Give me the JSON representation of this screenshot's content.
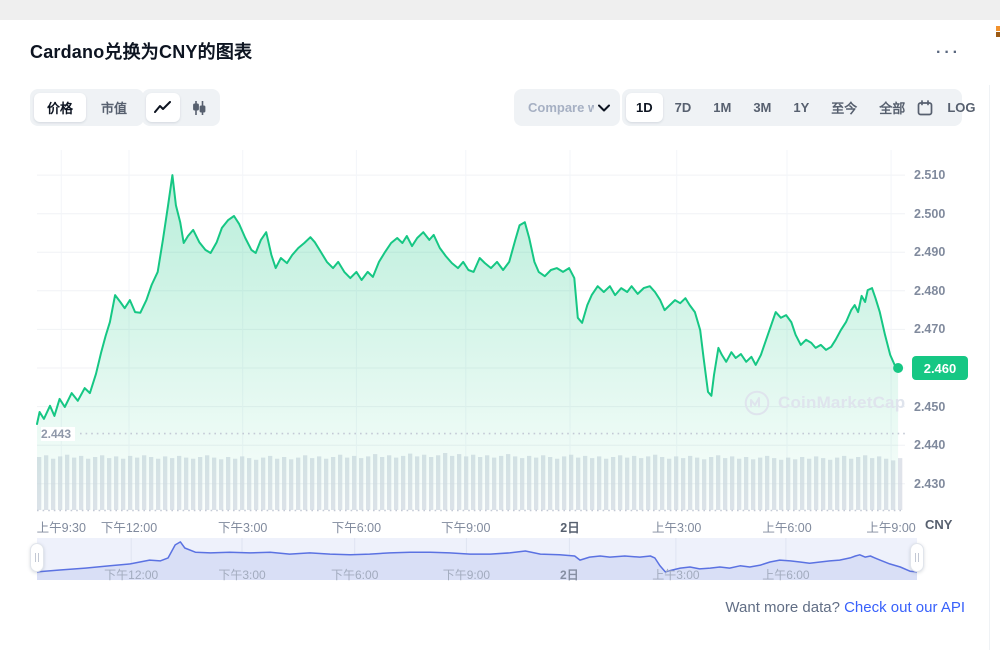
{
  "header": {
    "title": "Cardano兑换为CNY的图表",
    "options_icon": "···"
  },
  "controls": {
    "mode_toggle": {
      "items": [
        {
          "label": "价格",
          "selected": true
        },
        {
          "label": "市值",
          "selected": false
        }
      ]
    },
    "chart_type_toggle": {
      "line_icon": "line-chart",
      "candle_icon": "candlestick",
      "selected": "line"
    },
    "compare": {
      "label": "Compare w"
    },
    "ranges": {
      "items": [
        "1D",
        "7D",
        "1M",
        "3M",
        "1Y",
        "至今",
        "全部"
      ],
      "selected": "1D",
      "calendar_icon": "calendar",
      "log_label": "LOG"
    }
  },
  "watermark": {
    "text": "CoinMarketCap"
  },
  "footer": {
    "prompt": "Want more data?",
    "link": "Check out our API"
  },
  "axis_labels": {
    "currency": "CNY",
    "current_price": "2.460",
    "low_line": "2.443"
  },
  "colors": {
    "line": "#16c784",
    "fill_top": "rgba(22,199,132,0.30)",
    "fill_bottom": "rgba(22,199,132,0.02)",
    "grid_h": "#f0f2f5",
    "grid_v": "#f3f5f9",
    "dotted": "#c3c9d5",
    "volume": "#d2d7e1",
    "nav_bg": "#eef1fb",
    "nav_fill": "#d9dff6",
    "nav_line": "#5b72e2",
    "nav_grid": "#dfe4f2",
    "badge": "#16c784",
    "link": "#3861fb"
  },
  "chart_data": {
    "type": "area",
    "title": "Cardano兑换为CNY的图表",
    "ylabel": "CNY",
    "ylim": [
      2.4232,
      2.5165
    ],
    "y_ticks": [
      2.51,
      2.5,
      2.49,
      2.48,
      2.47,
      2.45,
      2.44,
      2.43
    ],
    "current_price": 2.46,
    "low_value": 2.443,
    "x_ticks": {
      "labels": [
        "上午9:30",
        "下午12:00",
        "下午3:00",
        "下午6:00",
        "下午9:00",
        "2日",
        "上午3:00",
        "上午6:00",
        "上午9:00"
      ],
      "fracs": [
        0.028,
        0.106,
        0.237,
        0.368,
        0.494,
        0.614,
        0.737,
        0.864,
        0.984
      ],
      "bold_index": 5
    },
    "price_series": [
      [
        0.0,
        2.4455
      ],
      [
        0.003,
        2.4486
      ],
      [
        0.008,
        2.4468
      ],
      [
        0.015,
        2.4502
      ],
      [
        0.02,
        2.4476
      ],
      [
        0.026,
        2.452
      ],
      [
        0.032,
        2.4499
      ],
      [
        0.04,
        2.4535
      ],
      [
        0.047,
        2.4515
      ],
      [
        0.055,
        2.4548
      ],
      [
        0.061,
        2.4535
      ],
      [
        0.068,
        2.4585
      ],
      [
        0.074,
        2.4641
      ],
      [
        0.079,
        2.4683
      ],
      [
        0.084,
        2.4719
      ],
      [
        0.09,
        2.4789
      ],
      [
        0.096,
        2.4771
      ],
      [
        0.101,
        2.4755
      ],
      [
        0.107,
        2.4776
      ],
      [
        0.113,
        2.4745
      ],
      [
        0.119,
        2.4743
      ],
      [
        0.126,
        2.4776
      ],
      [
        0.132,
        2.4815
      ],
      [
        0.139,
        2.4849
      ],
      [
        0.145,
        2.4932
      ],
      [
        0.151,
        2.5022
      ],
      [
        0.156,
        2.51
      ],
      [
        0.16,
        2.5022
      ],
      [
        0.165,
        2.4978
      ],
      [
        0.169,
        2.4924
      ],
      [
        0.174,
        2.4942
      ],
      [
        0.18,
        2.4958
      ],
      [
        0.187,
        2.4926
      ],
      [
        0.194,
        2.4906
      ],
      [
        0.2,
        2.4898
      ],
      [
        0.207,
        2.4926
      ],
      [
        0.213,
        2.4963
      ],
      [
        0.22,
        2.4983
      ],
      [
        0.227,
        2.4994
      ],
      [
        0.233,
        2.4973
      ],
      [
        0.24,
        2.4937
      ],
      [
        0.247,
        2.4906
      ],
      [
        0.252,
        2.4898
      ],
      [
        0.258,
        2.4932
      ],
      [
        0.264,
        2.4952
      ],
      [
        0.27,
        2.4893
      ],
      [
        0.275,
        2.4859
      ],
      [
        0.281,
        2.4885
      ],
      [
        0.288,
        2.4872
      ],
      [
        0.294,
        2.4893
      ],
      [
        0.301,
        2.4911
      ],
      [
        0.308,
        2.4924
      ],
      [
        0.315,
        2.4939
      ],
      [
        0.32,
        2.4926
      ],
      [
        0.327,
        2.4901
      ],
      [
        0.334,
        2.4875
      ],
      [
        0.341,
        2.4859
      ],
      [
        0.347,
        2.4875
      ],
      [
        0.354,
        2.4849
      ],
      [
        0.361,
        2.4833
      ],
      [
        0.368,
        2.4849
      ],
      [
        0.374,
        2.4828
      ],
      [
        0.381,
        2.4849
      ],
      [
        0.387,
        2.4836
      ],
      [
        0.394,
        2.4875
      ],
      [
        0.401,
        2.4901
      ],
      [
        0.408,
        2.4924
      ],
      [
        0.415,
        2.4937
      ],
      [
        0.421,
        2.4924
      ],
      [
        0.426,
        2.4942
      ],
      [
        0.432,
        2.4916
      ],
      [
        0.438,
        2.4937
      ],
      [
        0.445,
        2.4952
      ],
      [
        0.452,
        2.4932
      ],
      [
        0.457,
        2.4945
      ],
      [
        0.464,
        2.4911
      ],
      [
        0.471,
        2.489
      ],
      [
        0.478,
        2.4872
      ],
      [
        0.485,
        2.4859
      ],
      [
        0.491,
        2.4875
      ],
      [
        0.497,
        2.4854
      ],
      [
        0.503,
        2.4849
      ],
      [
        0.51,
        2.4885
      ],
      [
        0.516,
        2.4872
      ],
      [
        0.523,
        2.4859
      ],
      [
        0.53,
        2.4875
      ],
      [
        0.537,
        2.4854
      ],
      [
        0.544,
        2.4875
      ],
      [
        0.551,
        2.4932
      ],
      [
        0.556,
        2.497
      ],
      [
        0.562,
        2.4978
      ],
      [
        0.567,
        2.4937
      ],
      [
        0.573,
        2.4875
      ],
      [
        0.578,
        2.4849
      ],
      [
        0.585,
        2.4838
      ],
      [
        0.592,
        2.4854
      ],
      [
        0.599,
        2.4859
      ],
      [
        0.606,
        2.4849
      ],
      [
        0.613,
        2.4859
      ],
      [
        0.619,
        2.4833
      ],
      [
        0.623,
        2.473
      ],
      [
        0.628,
        2.4717
      ],
      [
        0.634,
        2.4763
      ],
      [
        0.639,
        2.4789
      ],
      [
        0.646,
        2.4812
      ],
      [
        0.653,
        2.4797
      ],
      [
        0.66,
        2.4812
      ],
      [
        0.666,
        2.4789
      ],
      [
        0.673,
        2.4807
      ],
      [
        0.68,
        2.4797
      ],
      [
        0.685,
        2.4812
      ],
      [
        0.692,
        2.4792
      ],
      [
        0.699,
        2.4807
      ],
      [
        0.706,
        2.4812
      ],
      [
        0.712,
        2.4797
      ],
      [
        0.718,
        2.4776
      ],
      [
        0.723,
        2.475
      ],
      [
        0.729,
        2.4763
      ],
      [
        0.735,
        2.4776
      ],
      [
        0.741,
        2.4768
      ],
      [
        0.747,
        2.4781
      ],
      [
        0.752,
        2.4763
      ],
      [
        0.758,
        2.4745
      ],
      [
        0.764,
        2.4698
      ],
      [
        0.768,
        2.4626
      ],
      [
        0.773,
        2.4538
      ],
      [
        0.777,
        2.4528
      ],
      [
        0.78,
        2.4582
      ],
      [
        0.785,
        2.4652
      ],
      [
        0.789,
        2.4634
      ],
      [
        0.794,
        2.4616
      ],
      [
        0.8,
        2.4641
      ],
      [
        0.805,
        2.4626
      ],
      [
        0.811,
        2.4636
      ],
      [
        0.817,
        2.4616
      ],
      [
        0.823,
        2.4629
      ],
      [
        0.828,
        2.4608
      ],
      [
        0.834,
        2.4634
      ],
      [
        0.84,
        2.4673
      ],
      [
        0.846,
        2.4712
      ],
      [
        0.851,
        2.4745
      ],
      [
        0.857,
        2.473
      ],
      [
        0.863,
        2.4737
      ],
      [
        0.869,
        2.4719
      ],
      [
        0.874,
        2.4686
      ],
      [
        0.88,
        2.466
      ],
      [
        0.886,
        2.4673
      ],
      [
        0.892,
        2.4665
      ],
      [
        0.897,
        2.4652
      ],
      [
        0.903,
        2.466
      ],
      [
        0.909,
        2.4647
      ],
      [
        0.915,
        2.4655
      ],
      [
        0.92,
        2.4673
      ],
      [
        0.926,
        2.4698
      ],
      [
        0.932,
        2.4719
      ],
      [
        0.938,
        2.475
      ],
      [
        0.942,
        2.4763
      ],
      [
        0.946,
        2.4745
      ],
      [
        0.95,
        2.4787
      ],
      [
        0.954,
        2.4771
      ],
      [
        0.957,
        2.4802
      ],
      [
        0.962,
        2.4807
      ],
      [
        0.966,
        2.4781
      ],
      [
        0.971,
        2.4745
      ],
      [
        0.977,
        2.4686
      ],
      [
        0.983,
        2.4634
      ],
      [
        0.988,
        2.4608
      ],
      [
        0.992,
        2.46
      ]
    ],
    "volume_rel": [
      0.93,
      0.96,
      0.9,
      0.94,
      0.97,
      0.92,
      0.95,
      0.9,
      0.93,
      0.96,
      0.91,
      0.94,
      0.9,
      0.95,
      0.92,
      0.96,
      0.93,
      0.9,
      0.94,
      0.91,
      0.95,
      0.92,
      0.9,
      0.93,
      0.96,
      0.92,
      0.89,
      0.93,
      0.9,
      0.94,
      0.91,
      0.88,
      0.92,
      0.95,
      0.9,
      0.93,
      0.89,
      0.92,
      0.96,
      0.91,
      0.94,
      0.9,
      0.93,
      0.97,
      0.92,
      0.95,
      0.91,
      0.94,
      0.98,
      0.93,
      0.96,
      0.92,
      0.95,
      0.99,
      0.94,
      0.97,
      0.93,
      0.96,
      1.0,
      0.95,
      0.98,
      0.94,
      0.97,
      0.93,
      0.96,
      0.92,
      0.95,
      0.98,
      0.94,
      0.91,
      0.95,
      0.92,
      0.96,
      0.93,
      0.9,
      0.94,
      0.97,
      0.92,
      0.95,
      0.91,
      0.94,
      0.9,
      0.93,
      0.96,
      0.92,
      0.95,
      0.91,
      0.94,
      0.97,
      0.93,
      0.9,
      0.94,
      0.91,
      0.95,
      0.92,
      0.89,
      0.93,
      0.96,
      0.91,
      0.94,
      0.9,
      0.93,
      0.89,
      0.92,
      0.95,
      0.91,
      0.88,
      0.92,
      0.89,
      0.93,
      0.9,
      0.94,
      0.91,
      0.88,
      0.92,
      0.95,
      0.9,
      0.93,
      0.96,
      0.91,
      0.94,
      0.9,
      0.87,
      0.91
    ],
    "navigator": {
      "x_ticks": {
        "labels": [
          "下午12:00",
          "下午3:00",
          "下午6:00",
          "下午9:00",
          "2日",
          "上午3:00",
          "上午6:00"
        ],
        "fracs": [
          0.107,
          0.233,
          0.361,
          0.488,
          0.605,
          0.726,
          0.851
        ],
        "bold_index": 4
      },
      "series": [
        [
          0,
          0.16
        ],
        [
          0.026,
          0.21
        ],
        [
          0.055,
          0.26
        ],
        [
          0.083,
          0.32
        ],
        [
          0.106,
          0.37
        ],
        [
          0.128,
          0.47
        ],
        [
          0.14,
          0.45
        ],
        [
          0.149,
          0.53
        ],
        [
          0.157,
          0.87
        ],
        [
          0.163,
          0.95
        ],
        [
          0.168,
          0.79
        ],
        [
          0.18,
          0.68
        ],
        [
          0.197,
          0.66
        ],
        [
          0.219,
          0.68
        ],
        [
          0.242,
          0.66
        ],
        [
          0.265,
          0.68
        ],
        [
          0.287,
          0.63
        ],
        [
          0.31,
          0.66
        ],
        [
          0.333,
          0.63
        ],
        [
          0.356,
          0.61
        ],
        [
          0.378,
          0.63
        ],
        [
          0.401,
          0.66
        ],
        [
          0.424,
          0.68
        ],
        [
          0.447,
          0.68
        ],
        [
          0.469,
          0.66
        ],
        [
          0.492,
          0.63
        ],
        [
          0.515,
          0.63
        ],
        [
          0.537,
          0.66
        ],
        [
          0.555,
          0.71
        ],
        [
          0.572,
          0.63
        ],
        [
          0.594,
          0.61
        ],
        [
          0.611,
          0.58
        ],
        [
          0.617,
          0.47
        ],
        [
          0.628,
          0.55
        ],
        [
          0.64,
          0.58
        ],
        [
          0.651,
          0.55
        ],
        [
          0.668,
          0.58
        ],
        [
          0.685,
          0.55
        ],
        [
          0.697,
          0.58
        ],
        [
          0.702,
          0.53
        ],
        [
          0.708,
          0.32
        ],
        [
          0.714,
          0.16
        ],
        [
          0.722,
          0.21
        ],
        [
          0.731,
          0.26
        ],
        [
          0.742,
          0.29
        ],
        [
          0.753,
          0.24
        ],
        [
          0.765,
          0.26
        ],
        [
          0.776,
          0.29
        ],
        [
          0.787,
          0.26
        ],
        [
          0.799,
          0.32
        ],
        [
          0.81,
          0.29
        ],
        [
          0.822,
          0.34
        ],
        [
          0.833,
          0.42
        ],
        [
          0.844,
          0.47
        ],
        [
          0.856,
          0.45
        ],
        [
          0.867,
          0.42
        ],
        [
          0.878,
          0.39
        ],
        [
          0.89,
          0.42
        ],
        [
          0.901,
          0.45
        ],
        [
          0.912,
          0.47
        ],
        [
          0.924,
          0.53
        ],
        [
          0.93,
          0.58
        ],
        [
          0.935,
          0.61
        ],
        [
          0.941,
          0.55
        ],
        [
          0.947,
          0.58
        ],
        [
          0.952,
          0.53
        ],
        [
          0.958,
          0.47
        ],
        [
          0.969,
          0.37
        ],
        [
          0.981,
          0.29
        ],
        [
          0.992,
          0.18
        ],
        [
          1,
          0.16
        ]
      ]
    }
  }
}
